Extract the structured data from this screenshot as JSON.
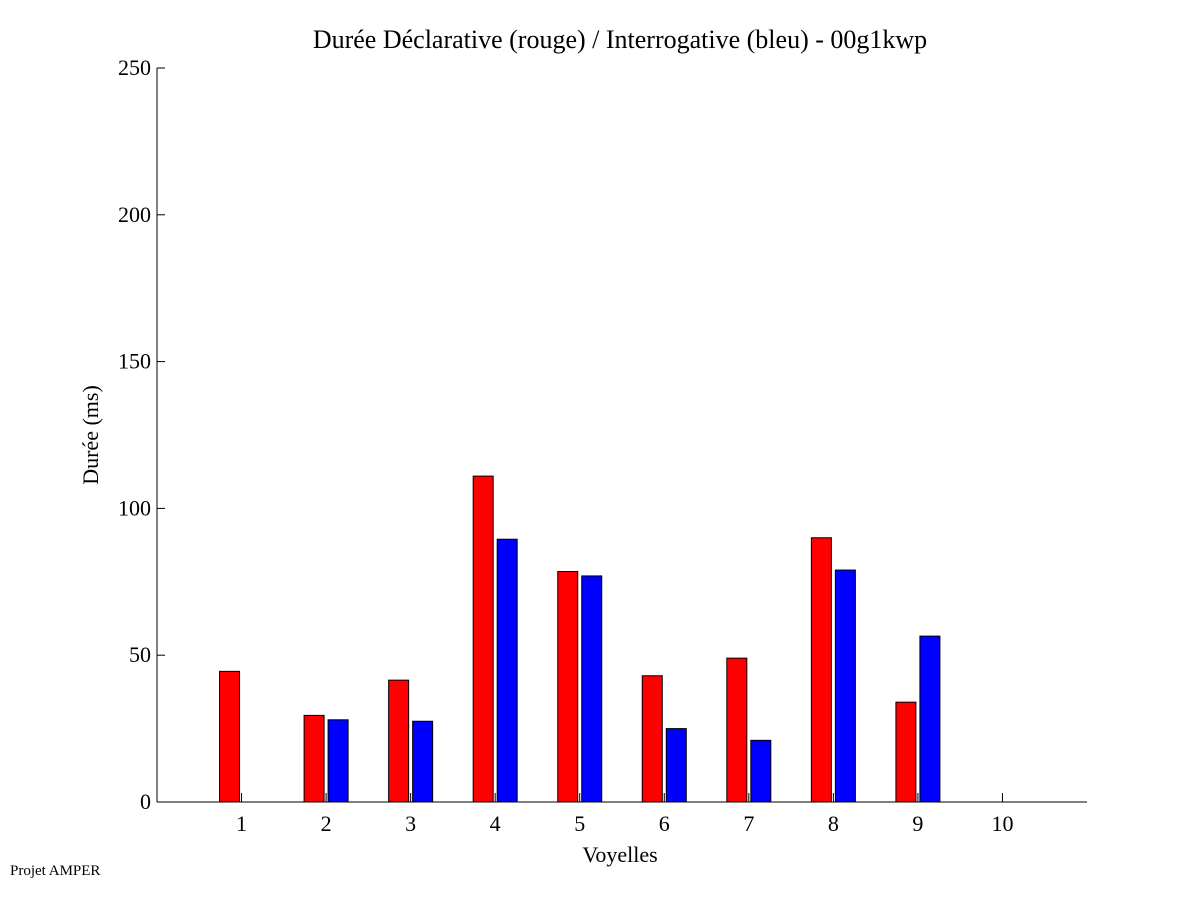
{
  "footer_text": "Projet AMPER",
  "chart_data": {
    "type": "bar",
    "title": "Durée Déclarative (rouge) / Interrogative (bleu) - 00g1kwp",
    "xlabel": "Voyelles",
    "ylabel": "Durée (ms)",
    "categories": [
      "1",
      "2",
      "3",
      "4",
      "5",
      "6",
      "7",
      "8",
      "9",
      "10"
    ],
    "x_ticks": [
      1,
      2,
      3,
      4,
      5,
      6,
      7,
      8,
      9,
      10
    ],
    "y_ticks": [
      0,
      50,
      100,
      150,
      200,
      250
    ],
    "xlim": [
      0,
      11
    ],
    "ylim": [
      0,
      250
    ],
    "grid": false,
    "series": [
      {
        "color": "#ff0000",
        "values": [
          44.5,
          29.5,
          41.5,
          111,
          78.5,
          43,
          49,
          90,
          34,
          null
        ]
      },
      {
        "color": "#0000ff",
        "values": [
          null,
          28,
          27.5,
          89.5,
          77,
          25,
          21,
          79,
          56.5,
          null
        ]
      }
    ]
  }
}
